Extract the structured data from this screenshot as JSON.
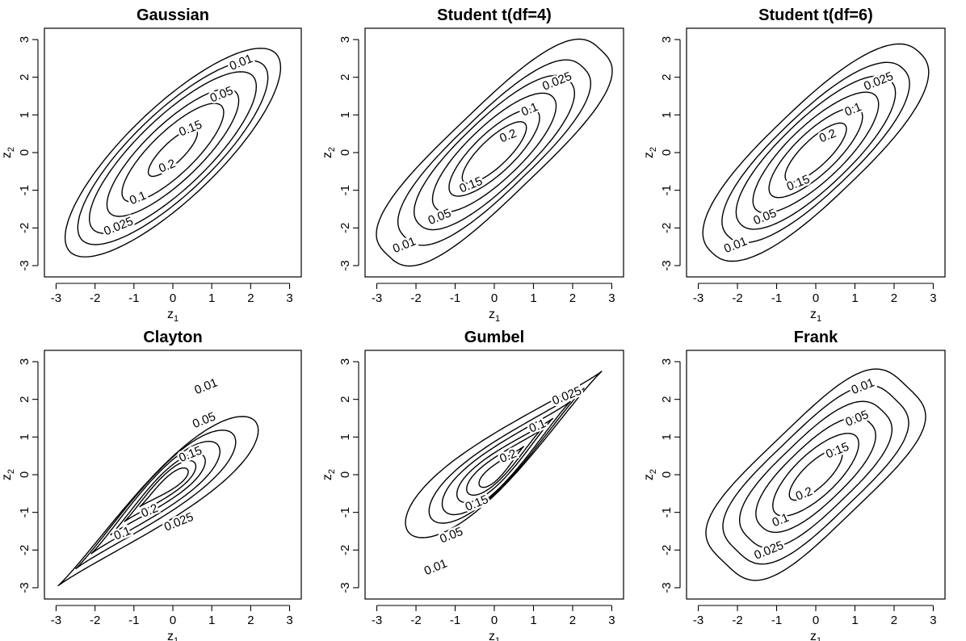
{
  "chart_data": [
    {
      "type": "contour",
      "title": "Gaussian",
      "xlabel": "z",
      "xlabel_sub": "1",
      "ylabel": "z",
      "ylabel_sub": "2",
      "xlim": [
        -3,
        3
      ],
      "ylim": [
        -3,
        3
      ],
      "xticks": [
        "-3",
        "-2",
        "-1",
        "0",
        "1",
        "2",
        "3"
      ],
      "yticks": [
        "-3",
        "-2",
        "-1",
        "0",
        "1",
        "2",
        "3"
      ],
      "contours": [
        {
          "level": "0.01",
          "label_at": [
            1.75,
            2.4
          ],
          "shape": {
            "kind": "ellipse",
            "cx": 0,
            "cy": 0,
            "a": 3.73,
            "b": 1.19,
            "angle": 45
          }
        },
        {
          "level": "0.025",
          "label_at": [
            -1.4,
            -1.95
          ],
          "shape": {
            "kind": "ellipse",
            "cx": 0,
            "cy": 0,
            "a": 3.29,
            "b": 1.05,
            "angle": 45
          }
        },
        {
          "level": "0.05",
          "label_at": [
            1.25,
            1.55
          ],
          "shape": {
            "kind": "ellipse",
            "cx": 0,
            "cy": 0,
            "a": 2.89,
            "b": 0.92,
            "angle": 45
          }
        },
        {
          "level": "0.1",
          "label_at": [
            -0.9,
            -1.2
          ],
          "shape": {
            "kind": "ellipse",
            "cx": 0,
            "cy": 0,
            "a": 2.28,
            "b": 0.73,
            "angle": 45
          }
        },
        {
          "level": "0.15",
          "label_at": [
            0.45,
            0.65
          ],
          "shape": {
            "kind": "ellipse",
            "cx": 0,
            "cy": 0,
            "a": 1.76,
            "b": 0.56,
            "angle": 45
          }
        },
        {
          "level": "0.2",
          "label_at": [
            -0.15,
            -0.35
          ],
          "shape": {
            "kind": "ellipse",
            "cx": 0,
            "cy": 0,
            "a": 0.85,
            "b": 0.27,
            "angle": 45
          }
        }
      ]
    },
    {
      "type": "contour",
      "title": "Student t(df=4)",
      "xlabel": "z",
      "xlabel_sub": "1",
      "ylabel": "z",
      "ylabel_sub": "2",
      "xlim": [
        -3,
        3
      ],
      "ylim": [
        -3,
        3
      ],
      "xticks": [
        "-3",
        "-2",
        "-1",
        "0",
        "1",
        "2",
        "3"
      ],
      "yticks": [
        "-3",
        "-2",
        "-1",
        "0",
        "1",
        "2",
        "3"
      ],
      "contours": [
        {
          "level": "0.01",
          "label_at": [
            -2.3,
            -2.45
          ],
          "shape": {
            "kind": "superellipse",
            "cx": 0,
            "cy": 0,
            "a": 3.85,
            "b": 1.15,
            "angle": 45,
            "n": 3.0
          }
        },
        {
          "level": "0.025",
          "label_at": [
            1.6,
            1.9
          ],
          "shape": {
            "kind": "superellipse",
            "cx": 0,
            "cy": 0,
            "a": 3.2,
            "b": 0.98,
            "angle": 45,
            "n": 2.6
          }
        },
        {
          "level": "0.05",
          "label_at": [
            -1.4,
            -1.7
          ],
          "shape": {
            "kind": "superellipse",
            "cx": 0,
            "cy": 0,
            "a": 2.7,
            "b": 0.86,
            "angle": 45,
            "n": 2.3
          }
        },
        {
          "level": "0.1",
          "label_at": [
            0.9,
            1.15
          ],
          "shape": {
            "kind": "superellipse",
            "cx": 0,
            "cy": 0,
            "a": 2.1,
            "b": 0.7,
            "angle": 45,
            "n": 2.1
          }
        },
        {
          "level": "0.15",
          "label_at": [
            -0.6,
            -0.85
          ],
          "shape": {
            "kind": "ellipse",
            "cx": 0,
            "cy": 0,
            "a": 1.55,
            "b": 0.52,
            "angle": 45
          }
        },
        {
          "level": "0.2",
          "label_at": [
            0.35,
            0.45
          ],
          "shape": {
            "kind": "ellipse",
            "cx": 0,
            "cy": 0,
            "a": 1.1,
            "b": 0.36,
            "angle": 45
          }
        }
      ]
    },
    {
      "type": "contour",
      "title": "Student t(df=6)",
      "xlabel": "z",
      "xlabel_sub": "1",
      "ylabel": "z",
      "ylabel_sub": "2",
      "xlim": [
        -3,
        3
      ],
      "ylim": [
        -3,
        3
      ],
      "xticks": [
        "-3",
        "-2",
        "-1",
        "0",
        "1",
        "2",
        "3"
      ],
      "yticks": [
        "-3",
        "-2",
        "-1",
        "0",
        "1",
        "2",
        "3"
      ],
      "contours": [
        {
          "level": "0.01",
          "label_at": [
            -2.05,
            -2.45
          ],
          "shape": {
            "kind": "superellipse",
            "cx": 0,
            "cy": 0,
            "a": 3.75,
            "b": 1.2,
            "angle": 45,
            "n": 2.5
          }
        },
        {
          "level": "0.025",
          "label_at": [
            1.6,
            1.9
          ],
          "shape": {
            "kind": "superellipse",
            "cx": 0,
            "cy": 0,
            "a": 3.15,
            "b": 1.02,
            "angle": 45,
            "n": 2.3
          }
        },
        {
          "level": "0.05",
          "label_at": [
            -1.3,
            -1.7
          ],
          "shape": {
            "kind": "superellipse",
            "cx": 0,
            "cy": 0,
            "a": 2.7,
            "b": 0.89,
            "angle": 45,
            "n": 2.15
          }
        },
        {
          "level": "0.1",
          "label_at": [
            0.95,
            1.15
          ],
          "shape": {
            "kind": "ellipse",
            "cx": 0,
            "cy": 0,
            "a": 2.15,
            "b": 0.72,
            "angle": 45
          }
        },
        {
          "level": "0.15",
          "label_at": [
            -0.45,
            -0.8
          ],
          "shape": {
            "kind": "ellipse",
            "cx": 0,
            "cy": 0,
            "a": 1.6,
            "b": 0.54,
            "angle": 45
          }
        },
        {
          "level": "0.2",
          "label_at": [
            0.3,
            0.45
          ],
          "shape": {
            "kind": "ellipse",
            "cx": 0,
            "cy": 0,
            "a": 1.05,
            "b": 0.35,
            "angle": 45
          }
        }
      ]
    },
    {
      "type": "contour",
      "title": "Clayton",
      "xlabel": "z",
      "xlabel_sub": "1",
      "ylabel": "z",
      "ylabel_sub": "2",
      "xlim": [
        -3,
        3
      ],
      "ylim": [
        -3,
        3
      ],
      "xticks": [
        "-3",
        "-2",
        "-1",
        "0",
        "1",
        "2",
        "3"
      ],
      "yticks": [
        "-3",
        "-2",
        "-1",
        "0",
        "1",
        "2",
        "3"
      ],
      "contours": [
        {
          "level": "0.01",
          "label_at": [
            0.85,
            2.35
          ],
          "shape": {
            "kind": "teardrop",
            "tip": [
              -2.95,
              -2.95
            ],
            "head": [
              1.45,
              0.85
            ],
            "w": 1.75
          }
        },
        {
          "level": "0.025",
          "label_at": [
            0.15,
            -1.25
          ],
          "shape": {
            "kind": "teardrop",
            "tip": [
              -2.5,
              -2.5
            ],
            "head": [
              1.0,
              0.6
            ],
            "w": 1.45
          }
        },
        {
          "level": "0.05",
          "label_at": [
            0.8,
            1.45
          ],
          "shape": {
            "kind": "teardrop",
            "tip": [
              -2.1,
              -2.1
            ],
            "head": [
              0.7,
              0.4
            ],
            "w": 1.2
          }
        },
        {
          "level": "0.1",
          "label_at": [
            -1.3,
            -1.55
          ],
          "shape": {
            "kind": "teardrop",
            "tip": [
              -1.6,
              -1.6
            ],
            "head": [
              0.45,
              0.2
            ],
            "w": 0.9
          }
        },
        {
          "level": "0.15",
          "label_at": [
            0.45,
            0.55
          ],
          "shape": {
            "kind": "teardrop",
            "tip": [
              -1.25,
              -1.25
            ],
            "head": [
              0.3,
              0.1
            ],
            "w": 0.68
          }
        },
        {
          "level": "0.2",
          "label_at": [
            -0.6,
            -0.95
          ],
          "shape": {
            "kind": "teardrop",
            "tip": [
              -0.85,
              -0.85
            ],
            "head": [
              0.2,
              0.0
            ],
            "w": 0.45
          }
        }
      ]
    },
    {
      "type": "contour",
      "title": "Gumbel",
      "xlabel": "z",
      "xlabel_sub": "1",
      "ylabel": "z",
      "ylabel_sub": "2",
      "xlim": [
        -3,
        3
      ],
      "ylim": [
        -3,
        3
      ],
      "xticks": [
        "-3",
        "-2",
        "-1",
        "0",
        "1",
        "2",
        "3"
      ],
      "yticks": [
        "-3",
        "-2",
        "-1",
        "0",
        "1",
        "2",
        "3"
      ],
      "contours": [
        {
          "level": "0.01",
          "label_at": [
            -1.5,
            -2.45
          ],
          "shape": {
            "kind": "teardrop",
            "tip": [
              2.75,
              2.75
            ],
            "head": [
              -1.5,
              -0.95
            ],
            "w": 1.8
          }
        },
        {
          "level": "0.025",
          "label_at": [
            1.85,
            2.1
          ],
          "shape": {
            "kind": "teardrop",
            "tip": [
              2.3,
              2.3
            ],
            "head": [
              -1.05,
              -0.7
            ],
            "w": 1.45
          }
        },
        {
          "level": "0.05",
          "label_at": [
            -1.1,
            -1.6
          ],
          "shape": {
            "kind": "teardrop",
            "tip": [
              1.95,
              1.95
            ],
            "head": [
              -0.8,
              -0.55
            ],
            "w": 1.25
          }
        },
        {
          "level": "0.1",
          "label_at": [
            1.1,
            1.3
          ],
          "shape": {
            "kind": "teardrop",
            "tip": [
              1.5,
              1.5
            ],
            "head": [
              -0.55,
              -0.35
            ],
            "w": 0.95
          }
        },
        {
          "level": "0.15",
          "label_at": [
            -0.45,
            -0.75
          ],
          "shape": {
            "kind": "teardrop",
            "tip": [
              1.2,
              1.2
            ],
            "head": [
              -0.4,
              -0.25
            ],
            "w": 0.72
          }
        },
        {
          "level": "0.2",
          "label_at": [
            0.35,
            0.5
          ],
          "shape": {
            "kind": "teardrop",
            "tip": [
              0.75,
              0.75
            ],
            "head": [
              -0.2,
              -0.15
            ],
            "w": 0.45
          }
        }
      ]
    },
    {
      "type": "contour",
      "title": "Frank",
      "xlabel": "z",
      "xlabel_sub": "1",
      "ylabel": "z",
      "ylabel_sub": "2",
      "xlim": [
        -3,
        3
      ],
      "ylim": [
        -3,
        3
      ],
      "xticks": [
        "-3",
        "-2",
        "-1",
        "0",
        "1",
        "2",
        "3"
      ],
      "yticks": [
        "-3",
        "-2",
        "-1",
        "0",
        "1",
        "2",
        "3"
      ],
      "contours": [
        {
          "level": "0.01",
          "label_at": [
            1.2,
            2.35
          ],
          "shape": {
            "kind": "superellipse",
            "cx": 0,
            "cy": 0,
            "a": 3.3,
            "b": 1.35,
            "angle": 45,
            "n": 3.6
          }
        },
        {
          "level": "0.025",
          "label_at": [
            -1.2,
            -2.0
          ],
          "shape": {
            "kind": "superellipse",
            "cx": 0,
            "cy": 0,
            "a": 2.85,
            "b": 1.15,
            "angle": 45,
            "n": 3.2
          }
        },
        {
          "level": "0.05",
          "label_at": [
            1.05,
            1.5
          ],
          "shape": {
            "kind": "superellipse",
            "cx": 0,
            "cy": 0,
            "a": 2.4,
            "b": 0.95,
            "angle": 45,
            "n": 2.8
          }
        },
        {
          "level": "0.1",
          "label_at": [
            -0.9,
            -1.2
          ],
          "shape": {
            "kind": "superellipse",
            "cx": 0,
            "cy": 0,
            "a": 1.95,
            "b": 0.75,
            "angle": 45,
            "n": 2.4
          }
        },
        {
          "level": "0.15",
          "label_at": [
            0.55,
            0.65
          ],
          "shape": {
            "kind": "ellipse",
            "cx": 0,
            "cy": 0,
            "a": 1.45,
            "b": 0.55,
            "angle": 45
          }
        },
        {
          "level": "0.2",
          "label_at": [
            -0.3,
            -0.5
          ],
          "shape": {
            "kind": "ellipse",
            "cx": 0,
            "cy": 0,
            "a": 0.9,
            "b": 0.32,
            "angle": 45
          }
        }
      ]
    }
  ]
}
